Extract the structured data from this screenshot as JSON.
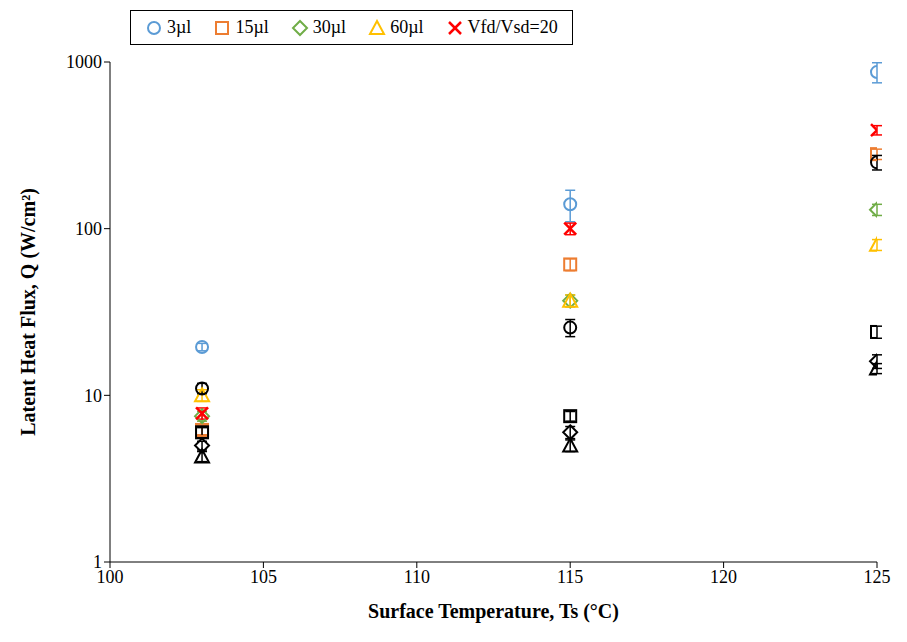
{
  "chart_data": {
    "type": "scatter",
    "x_label": "Surface Temperature, Ts (°C)",
    "y_label": "Latent Heat Flux, Q (W/cm²)",
    "x": [
      103,
      115,
      125
    ],
    "xlim": [
      100,
      125
    ],
    "xticks": [
      100,
      105,
      110,
      115,
      120,
      125
    ],
    "ylim": [
      1,
      1000
    ],
    "yticks": [
      1,
      10,
      100,
      1000
    ],
    "log": "y",
    "grid": false,
    "legend": "top",
    "series": [
      {
        "name": "3µl",
        "color": "#5B9BD5",
        "marker": "circle",
        "values": [
          19.5,
          140,
          870
        ],
        "errors": [
          1,
          30,
          120
        ]
      },
      {
        "name": "15µl",
        "color": "#ED7D31",
        "marker": "square",
        "values": [
          6.2,
          61,
          280
        ],
        "errors": [
          0.4,
          5,
          20
        ]
      },
      {
        "name": "30µl",
        "color": "#70AD47",
        "marker": "diamond",
        "values": [
          7.5,
          37,
          130
        ],
        "errors": [
          0.5,
          3,
          10
        ]
      },
      {
        "name": "60µl",
        "color": "#FFC000",
        "marker": "triangle",
        "values": [
          10,
          37,
          80
        ],
        "errors": [
          0.8,
          3,
          6
        ]
      },
      {
        "name": "Vfd/Vsd=20",
        "color": "#FF0000",
        "marker": "x",
        "values": [
          7.8,
          100,
          390
        ],
        "errors": [
          0.6,
          8,
          25
        ]
      },
      {
        "color": "#000000",
        "marker": "circle",
        "values": [
          11,
          25.5,
          250
        ],
        "errors": [
          0.8,
          3,
          25
        ]
      },
      {
        "color": "#000000",
        "marker": "square",
        "values": [
          6,
          7.5,
          24
        ],
        "errors": [
          0.4,
          0.5,
          2
        ]
      },
      {
        "color": "#000000",
        "marker": "diamond",
        "values": [
          5,
          6,
          16
        ],
        "errors": [
          0.3,
          0.5,
          1.5
        ]
      },
      {
        "color": "#000000",
        "marker": "triangle",
        "values": [
          4.3,
          5,
          14.5
        ],
        "errors": [
          0.3,
          0.4,
          1
        ]
      }
    ]
  }
}
